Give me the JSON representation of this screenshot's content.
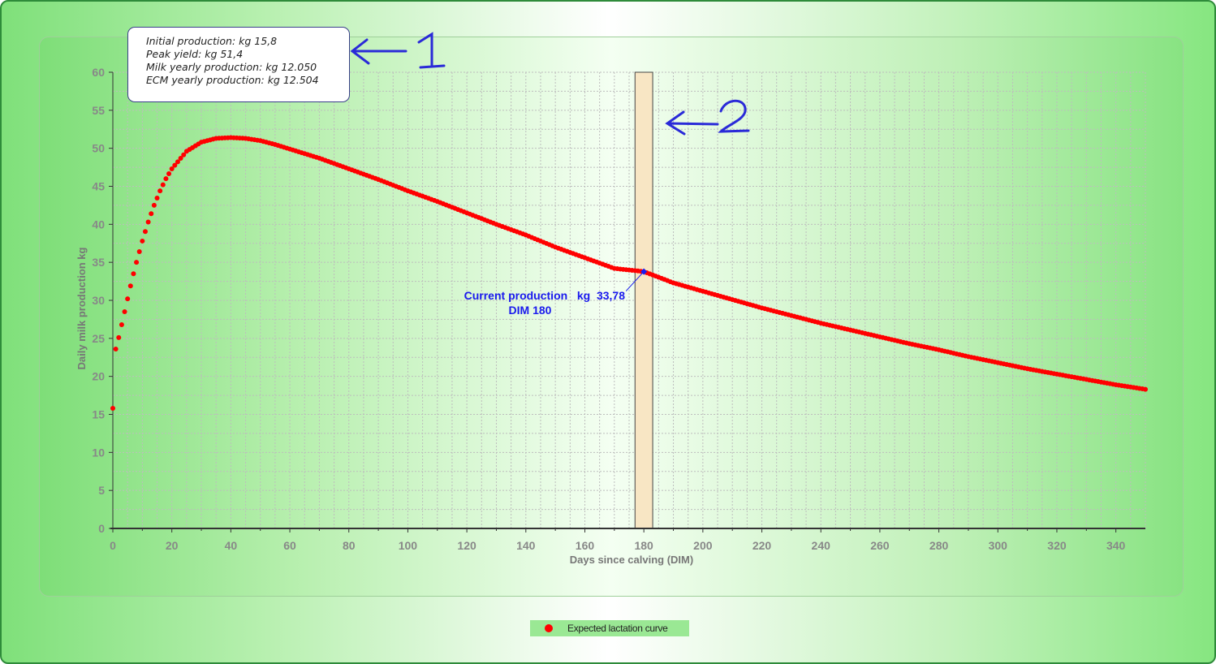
{
  "info_box": {
    "lines": [
      "Initial production: kg 15,8",
      "Peak yield: kg 51,4",
      "Milk yearly production: kg 12.050",
      "ECM yearly production: kg 12.504"
    ]
  },
  "callouts": {
    "one": "1",
    "two": "2"
  },
  "annotation": {
    "line1": "Current production   kg  33,78",
    "line2": "DIM 180",
    "dim": 180,
    "value": 33.78
  },
  "legend": {
    "label": "Expected lactation curve"
  },
  "colors": {
    "series": "#ff0000",
    "annotation": "#1a1aee",
    "band_fill": "#f8e6c4",
    "frame_border": "#2e8b3a",
    "callout_ink": "#2a2ad8"
  },
  "chart_data": {
    "type": "scatter",
    "xlabel": "Days since calving (DIM)",
    "ylabel": "Daily milk production kg",
    "xlim": [
      0,
      350
    ],
    "ylim": [
      0,
      60
    ],
    "x_ticks": [
      0,
      20,
      40,
      60,
      80,
      100,
      120,
      140,
      160,
      180,
      200,
      220,
      240,
      260,
      280,
      300,
      320,
      340
    ],
    "y_ticks": [
      0,
      5,
      10,
      15,
      20,
      25,
      30,
      35,
      40,
      45,
      50,
      55,
      60
    ],
    "grid": true,
    "legend_position": "bottom-center",
    "highlight_band": [
      177,
      183
    ],
    "series": [
      {
        "name": "Expected lactation curve",
        "x": [
          0,
          1,
          2,
          3,
          4,
          5,
          6,
          7,
          8,
          9,
          10,
          12,
          14,
          16,
          18,
          20,
          25,
          30,
          35,
          40,
          45,
          50,
          55,
          60,
          70,
          80,
          90,
          100,
          110,
          120,
          130,
          140,
          150,
          160,
          170,
          180,
          190,
          200,
          210,
          220,
          230,
          240,
          250,
          260,
          270,
          280,
          290,
          300,
          310,
          320,
          330,
          340,
          350
        ],
        "y": [
          15.8,
          23.6,
          25.1,
          26.8,
          28.5,
          30.2,
          31.9,
          33.5,
          35.0,
          36.4,
          37.8,
          40.3,
          42.5,
          44.4,
          46.0,
          47.3,
          49.6,
          50.8,
          51.3,
          51.4,
          51.3,
          51.0,
          50.5,
          49.9,
          48.7,
          47.3,
          45.9,
          44.4,
          43.0,
          41.5,
          40.0,
          38.6,
          37.0,
          35.6,
          34.2,
          33.78,
          32.3,
          31.2,
          30.1,
          29.0,
          28.0,
          27.0,
          26.1,
          25.2,
          24.3,
          23.5,
          22.6,
          21.8,
          21.0,
          20.3,
          19.6,
          18.9,
          18.3
        ]
      }
    ]
  }
}
